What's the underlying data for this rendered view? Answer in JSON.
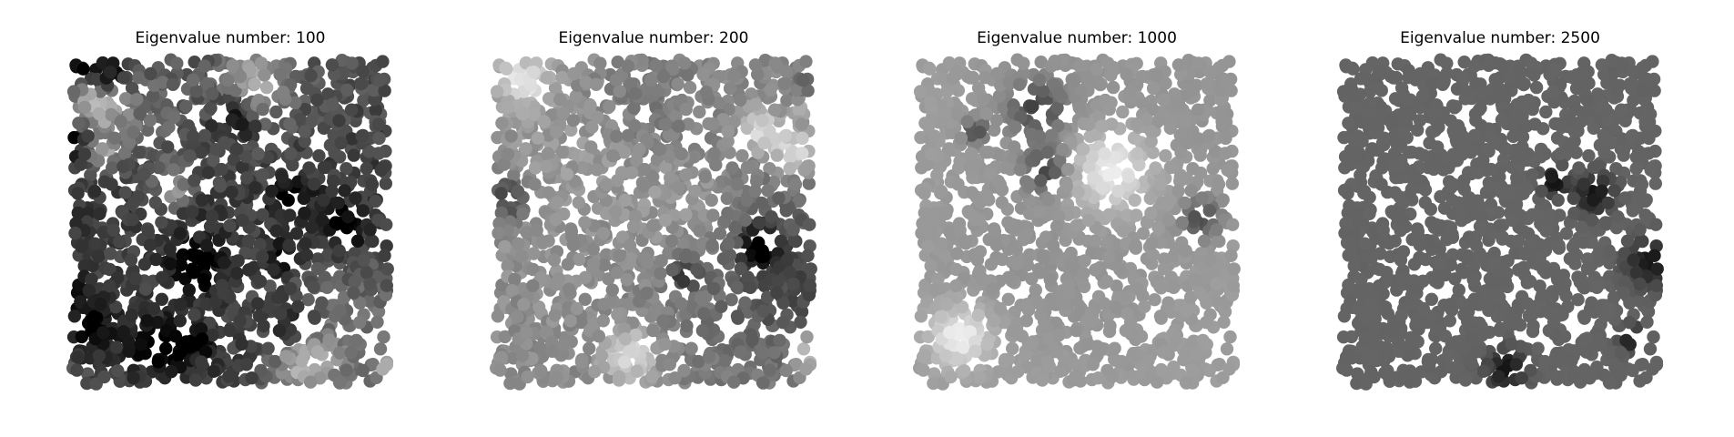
{
  "figure": {
    "background": "#ffffff",
    "axes_visible": false
  },
  "chart_data": [
    {
      "type": "scatter",
      "title": "Eigenvalue number: 100",
      "xlabel": "",
      "ylabel": "",
      "colormap": "grayscale",
      "shading": "mostly dark gray with scattered black and light patches",
      "points_estimate": 1500,
      "grid": false,
      "tone": {
        "base": 0.32,
        "spread": 0.3,
        "dark_spots": 14,
        "light_spots": 6
      }
    },
    {
      "type": "scatter",
      "title": "Eigenvalue number: 200",
      "xlabel": "",
      "ylabel": "",
      "colormap": "grayscale",
      "shading": "medium gray with lighter and darker regions",
      "points_estimate": 1500,
      "grid": false,
      "tone": {
        "base": 0.55,
        "spread": 0.22,
        "dark_spots": 5,
        "light_spots": 6
      }
    },
    {
      "type": "scatter",
      "title": "Eigenvalue number: 1000",
      "xlabel": "",
      "ylabel": "",
      "colormap": "grayscale",
      "shading": "uniform light gray with a few dark points near center",
      "points_estimate": 1500,
      "grid": false,
      "tone": {
        "base": 0.62,
        "spread": 0.05,
        "dark_spots": 4,
        "light_spots": 2
      }
    },
    {
      "type": "scatter",
      "title": "Eigenvalue number: 2500",
      "xlabel": "",
      "ylabel": "",
      "colormap": "grayscale",
      "shading": "uniform dark gray with a few black points near bottom center",
      "points_estimate": 1500,
      "grid": false,
      "tone": {
        "base": 0.39,
        "spread": 0.02,
        "dark_spots": 5,
        "light_spots": 0
      }
    }
  ]
}
